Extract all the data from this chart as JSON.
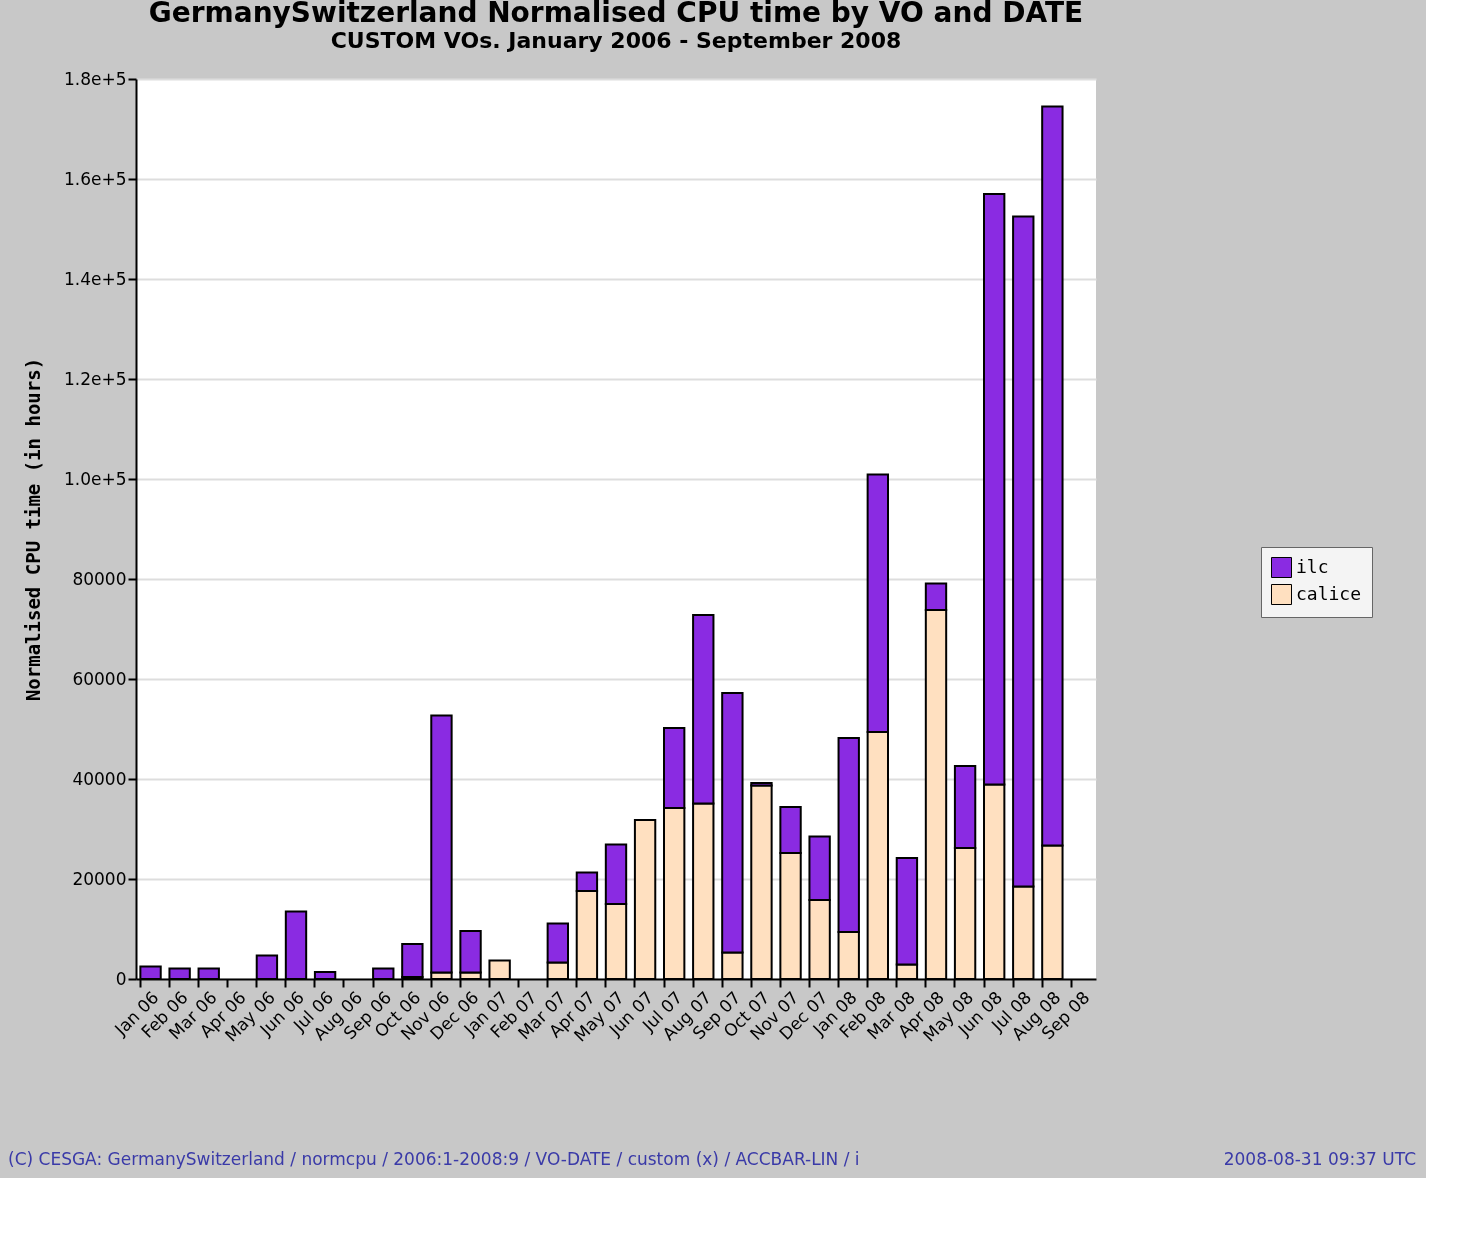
{
  "chart_data": {
    "type": "bar",
    "stacked": true,
    "title": "GermanySwitzerland Normalised CPU time by VO and DATE",
    "subtitle": "CUSTOM VOs. January 2006 - September 2008",
    "ylabel": "Normalised CPU time (in hours)",
    "categories": [
      "Jan 06",
      "Feb 06",
      "Mar 06",
      "Apr 06",
      "May 06",
      "Jun 06",
      "Jul 06",
      "Aug 06",
      "Sep 06",
      "Oct 06",
      "Nov 06",
      "Dec 06",
      "Jan 07",
      "Feb 07",
      "Mar 07",
      "Apr 07",
      "May 07",
      "Jun 07",
      "Jul 07",
      "Aug 07",
      "Sep 07",
      "Oct 07",
      "Nov 07",
      "Dec 07",
      "Jan 08",
      "Feb 08",
      "Mar 08",
      "Apr 08",
      "May 08",
      "Jun 08",
      "Jul 08",
      "Aug 08",
      "Sep 08"
    ],
    "series": [
      {
        "name": "calice",
        "color": "#ffe0c0",
        "values": [
          0,
          0,
          0,
          0,
          0,
          0,
          0,
          0,
          0,
          400,
          1300,
          1300,
          3700,
          0,
          3300,
          17600,
          15000,
          31800,
          34200,
          35100,
          5300,
          38700,
          25200,
          15800,
          9400,
          49400,
          2900,
          73800,
          26200,
          38900,
          18500,
          26700,
          0
        ]
      },
      {
        "name": "ilc",
        "color": "#8a2be2",
        "values": [
          2500,
          2100,
          2100,
          0,
          4700,
          13500,
          1400,
          0,
          2100,
          6600,
          51400,
          8300,
          0,
          0,
          7800,
          3700,
          11900,
          0,
          16000,
          37700,
          51900,
          500,
          9200,
          12700,
          38800,
          51500,
          21300,
          5300,
          16400,
          118100,
          134000,
          147800,
          0
        ]
      }
    ],
    "ylim": [
      0,
      180000
    ],
    "yticks": [
      0,
      20000,
      40000,
      60000,
      80000,
      {
        "value": 100000,
        "label": "1.0e+5"
      },
      {
        "value": 120000,
        "label": "1.2e+5"
      },
      {
        "value": 140000,
        "label": "1.4e+5"
      },
      {
        "value": 160000,
        "label": "1.6e+5"
      },
      {
        "value": 180000,
        "label": "1.8e+5"
      }
    ],
    "grid": "y",
    "legend": "right",
    "annotations": [
      "(C) CESGA: GermanySwitzerland / normcpu / 2006:1-2008:9 / VO-DATE / custom (x) / ACCBAR-LIN / i",
      "2008-08-31 09:37 UTC"
    ]
  }
}
